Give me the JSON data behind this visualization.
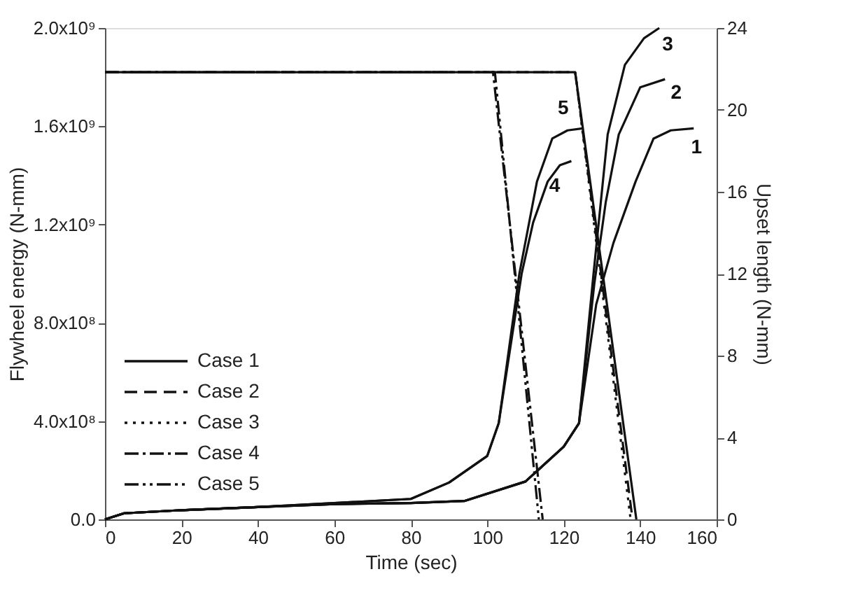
{
  "chart_data": {
    "type": "line",
    "xlabel": "Time (sec)",
    "ylabel": "Flywheel energy (N-mm)",
    "y2label": "Upset length (N-mm)",
    "xlim": [
      0,
      160
    ],
    "xticks": [
      0,
      20,
      40,
      60,
      80,
      100,
      120,
      140,
      160
    ],
    "ylim": [
      0,
      2000000000
    ],
    "yticks": [
      {
        "value": 0,
        "label": "0.0"
      },
      {
        "value": 400000000,
        "label": "4.0x10⁸"
      },
      {
        "value": 800000000,
        "label": "8.0x10⁸"
      },
      {
        "value": 1200000000,
        "label": "1.2x10⁹"
      },
      {
        "value": 1600000000,
        "label": "1.6x10⁹"
      },
      {
        "value": 2000000000,
        "label": "2.0x10⁹"
      }
    ],
    "y2lim": [
      0,
      24
    ],
    "y2ticks": [
      0,
      4,
      8,
      12,
      16,
      20,
      24
    ],
    "grid": false,
    "legend": "bottom left",
    "marker": "none",
    "series": [
      {
        "name": "Case 1",
        "color": "#111111",
        "line_style": "solid",
        "x": [
          0,
          123,
          139
        ],
        "values": [
          1820000000,
          1820000000,
          0
        ]
      },
      {
        "name": "Case 2",
        "color": "#111111",
        "line_style": "dashed",
        "x": [
          0,
          123,
          138
        ],
        "values": [
          1820000000,
          1820000000,
          0
        ]
      },
      {
        "name": "Case 3",
        "color": "#111111",
        "line_style": "dotted",
        "x": [
          0,
          123,
          137.5
        ],
        "values": [
          1820000000,
          1820000000,
          0
        ]
      },
      {
        "name": "Case 4",
        "color": "#111111",
        "line_style": "dashdot",
        "x": [
          0,
          101.5,
          114.5
        ],
        "values": [
          1820000000,
          1820000000,
          0
        ]
      },
      {
        "name": "Case 5",
        "color": "#111111",
        "line_style": "dashdotdot",
        "x": [
          0,
          102,
          113.5
        ],
        "values": [
          1820000000,
          1820000000,
          0
        ]
      },
      {
        "name": "1",
        "color": "#111111",
        "axis": "y2",
        "line_style": "solid",
        "x": [
          0,
          5,
          20,
          40,
          60,
          80,
          94,
          110,
          120,
          124,
          128.5,
          133,
          138.8,
          143.5,
          148,
          154
        ],
        "values": [
          0,
          0.3,
          0.45,
          0.6,
          0.75,
          0.8,
          0.9,
          1.85,
          3.55,
          4.7,
          10.5,
          13.5,
          16.5,
          18.6,
          19.0,
          19.1
        ]
      },
      {
        "name": "2",
        "color": "#111111",
        "axis": "y2",
        "line_style": "solid",
        "x": [
          0,
          5,
          20,
          40,
          60,
          80,
          94,
          110,
          120,
          124,
          128,
          131,
          134.4,
          140,
          146.5
        ],
        "values": [
          0,
          0.3,
          0.45,
          0.6,
          0.75,
          0.8,
          0.9,
          1.85,
          3.55,
          4.7,
          11.5,
          15.5,
          18.8,
          21.1,
          21.5
        ]
      },
      {
        "name": "3",
        "color": "#111111",
        "axis": "y2",
        "line_style": "solid",
        "x": [
          0,
          5,
          20,
          40,
          60,
          80,
          94,
          110,
          120,
          124,
          127.8,
          131.5,
          136,
          141,
          145
        ],
        "values": [
          0,
          0.3,
          0.45,
          0.6,
          0.75,
          0.8,
          0.9,
          1.85,
          3.55,
          4.7,
          12,
          18.8,
          22.2,
          23.5,
          24
        ]
      },
      {
        "name": "4",
        "color": "#111111",
        "axis": "y2",
        "line_style": "solid",
        "x": [
          0,
          5,
          20,
          40,
          60,
          80,
          90,
          100,
          103,
          109,
          112,
          115.8,
          119,
          122
        ],
        "values": [
          0,
          0.3,
          0.45,
          0.6,
          0.8,
          1.0,
          1.8,
          3.1,
          4.7,
          12,
          14.5,
          16.5,
          17.3,
          17.5
        ]
      },
      {
        "name": "5",
        "color": "#111111",
        "axis": "y2",
        "line_style": "solid",
        "x": [
          0,
          5,
          20,
          40,
          60,
          80,
          90,
          100,
          103,
          108.4,
          113,
          117,
          121,
          125
        ],
        "values": [
          0,
          0.3,
          0.45,
          0.6,
          0.8,
          1.0,
          1.8,
          3.1,
          4.7,
          12,
          16.5,
          18.6,
          19.0,
          19.1
        ]
      }
    ]
  }
}
